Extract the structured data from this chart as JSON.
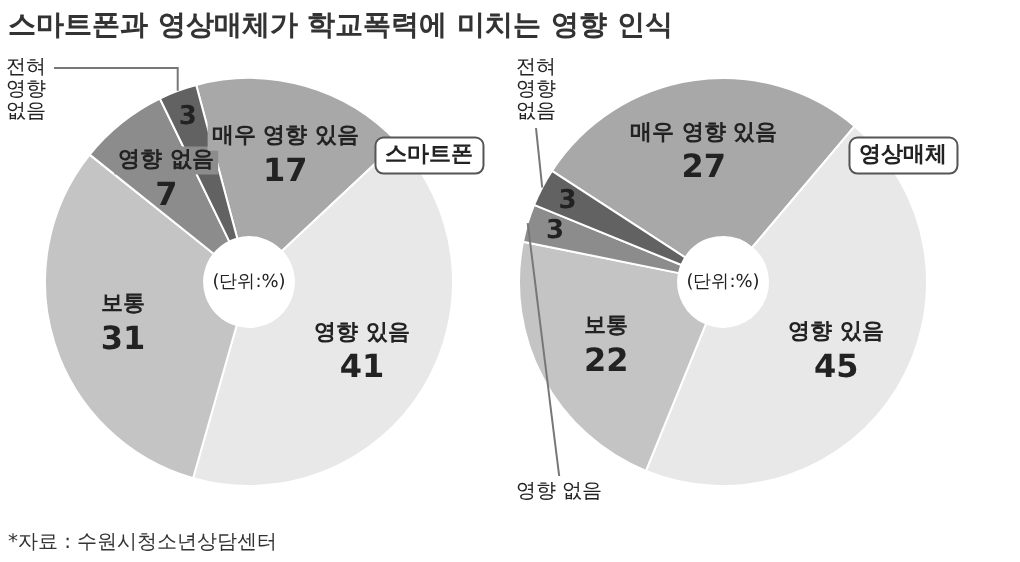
{
  "chart_data": [
    {
      "type": "donut",
      "title": "스마트폰과 영상매체가 학교폭력에 미치는 영향 인식",
      "subtitle": "스마트폰",
      "categories": [
        "매우 영향 있음",
        "영향 있음",
        "보통",
        "영향 없음",
        "전혀 영향 없음"
      ],
      "values": [
        17,
        41,
        31,
        7,
        3
      ],
      "colors": [
        "#a8a8a8",
        "#e8e8e8",
        "#c4c4c4",
        "#8c8c8c",
        "#626262"
      ],
      "data_labels": true,
      "legend": false,
      "annotations": [
        "(단위:%)",
        "*자료 : 수원시청소년상담센터"
      ]
    },
    {
      "type": "donut",
      "subtitle": "영상매체",
      "categories": [
        "매우 영향 있음",
        "영향 있음",
        "보통",
        "영향 없음",
        "전혀 영향 없음"
      ],
      "values": [
        27,
        45,
        22,
        3,
        3
      ],
      "colors": [
        "#a8a8a8",
        "#e8e8e8",
        "#c4c4c4",
        "#8c8c8c",
        "#626262"
      ],
      "data_labels": true,
      "legend": false,
      "annotations": [
        "(단위:%)"
      ]
    }
  ]
}
